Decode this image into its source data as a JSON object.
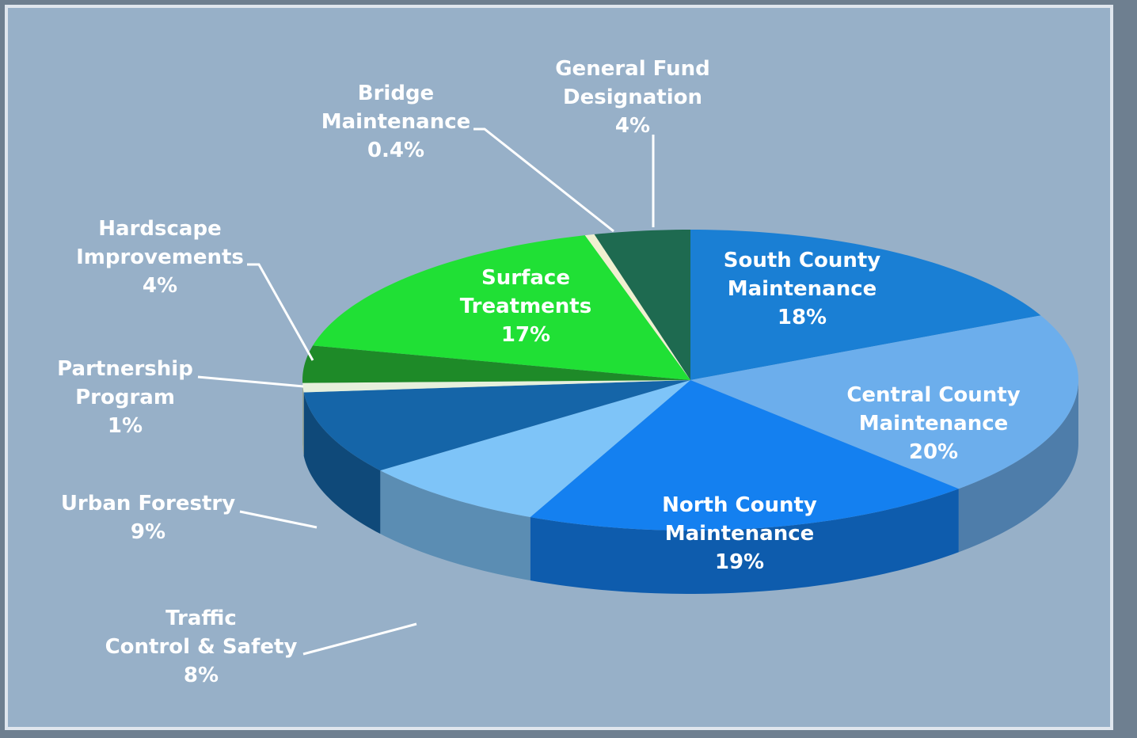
{
  "chart_data": {
    "type": "pie3d",
    "categories": [
      "South County\nMaintenance",
      "Central County\nMaintenance",
      "North County\nMaintenance",
      "Traffic\nControl & Safety",
      "Urban Forestry",
      "Partnership\nProgram",
      "Hardscape\nImprovements",
      "Surface\nTreatments",
      "Bridge\nMaintenance",
      "General Fund\nDesignation"
    ],
    "values": [
      18,
      20,
      19,
      8,
      9,
      1,
      4,
      17,
      0.4,
      4
    ],
    "value_labels": [
      "18%",
      "20%",
      "19%",
      "8%",
      "9%",
      "1%",
      "4%",
      "17%",
      "0.4%",
      "4%"
    ],
    "colors": [
      "#1a7fd4",
      "#6caeec",
      "#1480f0",
      "#7ec4f8",
      "#1565a8",
      "#e6f0dc",
      "#1e8a28",
      "#20e035",
      "#f0f0d0",
      "#1e6a50"
    ]
  }
}
